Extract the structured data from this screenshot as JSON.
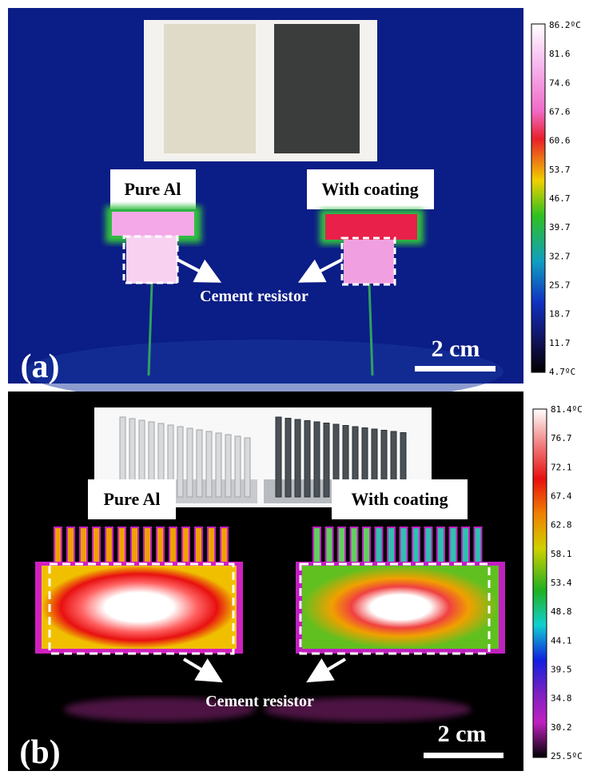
{
  "panels": [
    {
      "label": "(a)",
      "sample_labels": [
        "Pure Al",
        "With coating"
      ],
      "callout": "Cement resistor",
      "scale_bar": "2 cm",
      "colorbar": {
        "ticks": [
          "86.2ºC",
          "81.6",
          "74.6",
          "67.6",
          "60.6",
          "53.7",
          "46.7",
          "39.7",
          "32.7",
          "25.7",
          "18.7",
          "11.7",
          "4.7ºC"
        ]
      }
    },
    {
      "label": "(b)",
      "sample_labels": [
        "Pure Al",
        "With coating"
      ],
      "callout": "Cement resistor",
      "scale_bar": "2 cm",
      "colorbar": {
        "ticks": [
          "81.4ºC",
          "76.7",
          "72.1",
          "67.4",
          "62.8",
          "58.1",
          "53.4",
          "48.8",
          "44.1",
          "39.5",
          "34.8",
          "30.2",
          "25.5ºC"
        ]
      }
    }
  ]
}
